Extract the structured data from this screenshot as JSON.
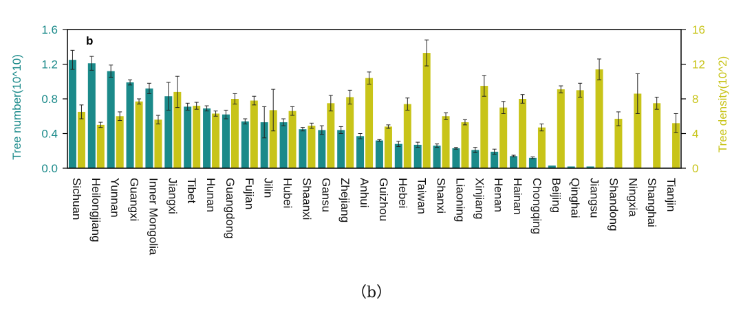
{
  "caption": "（b）",
  "chart_data": {
    "type": "bar",
    "panel_label": "b",
    "categories": [
      "Sichuan",
      "Heilongjiang",
      "Yunnan",
      "Guangxi",
      "Inner Mongolia",
      "Jiangxi",
      "Tibet",
      "Hunan",
      "Guangdong",
      "Fujian",
      "Jilin",
      "Hubei",
      "Shaanxi",
      "Gansu",
      "Zhejiang",
      "Anhui",
      "Guizhou",
      "Hebei",
      "Taiwan",
      "Shanxi",
      "Liaoning",
      "Xinjiang",
      "Henan",
      "Hainan",
      "Chongqing",
      "Beijing",
      "Qinghai",
      "Jiangsu",
      "Shandong",
      "Ningxia",
      "Shanghai",
      "Tianjin"
    ],
    "series": [
      {
        "name": "Tree number",
        "axis": "left",
        "color": "#1b8a8a",
        "values": [
          1.25,
          1.21,
          1.12,
          0.99,
          0.92,
          0.83,
          0.71,
          0.69,
          0.62,
          0.54,
          0.53,
          0.53,
          0.45,
          0.44,
          0.44,
          0.37,
          0.32,
          0.28,
          0.27,
          0.26,
          0.23,
          0.21,
          0.19,
          0.14,
          0.12,
          0.03,
          0.02,
          0.02,
          0.01,
          0.005,
          0.005,
          0.005
        ],
        "errors": [
          0.11,
          0.08,
          0.07,
          0.03,
          0.06,
          0.16,
          0.04,
          0.03,
          0.05,
          0.03,
          0.18,
          0.04,
          0.02,
          0.05,
          0.04,
          0.03,
          0.01,
          0.03,
          0.03,
          0.02,
          0.01,
          0.03,
          0.03,
          0.01,
          0.01,
          0.003,
          0.003,
          0.003,
          0.003,
          0.002,
          0.002,
          0.002
        ]
      },
      {
        "name": "Tree density",
        "axis": "right",
        "color": "#c8c419",
        "values": [
          6.5,
          5,
          6,
          7.7,
          5.6,
          8.8,
          7.2,
          6.3,
          8,
          7.8,
          6.7,
          6.6,
          4.9,
          7.5,
          8.2,
          10.4,
          4.8,
          7.4,
          13.3,
          6,
          5.3,
          9.5,
          7,
          8,
          4.7,
          9.1,
          9,
          11.4,
          5.7,
          8.6,
          7.5,
          5.2
        ],
        "errors": [
          0.8,
          0.3,
          0.5,
          0.3,
          0.5,
          1.8,
          0.4,
          0.3,
          0.6,
          0.5,
          2.4,
          0.5,
          0.3,
          0.9,
          0.8,
          0.7,
          0.2,
          0.7,
          1.5,
          0.4,
          0.3,
          1.2,
          0.7,
          0.5,
          0.4,
          0.4,
          0.8,
          1.2,
          0.8,
          2.3,
          0.7,
          1.1
        ]
      }
    ],
    "left_axis": {
      "label": "Tree number(10^10)",
      "min": 0,
      "max": 1.6,
      "ticks": [
        "0.0",
        "0.4",
        "0.8",
        "1.2",
        "1.6"
      ]
    },
    "right_axis": {
      "label": "Tree density(10^2)",
      "min": 0,
      "max": 16,
      "ticks": [
        "0",
        "4",
        "8",
        "12",
        "16"
      ]
    },
    "xlabel": "",
    "grid": false
  }
}
